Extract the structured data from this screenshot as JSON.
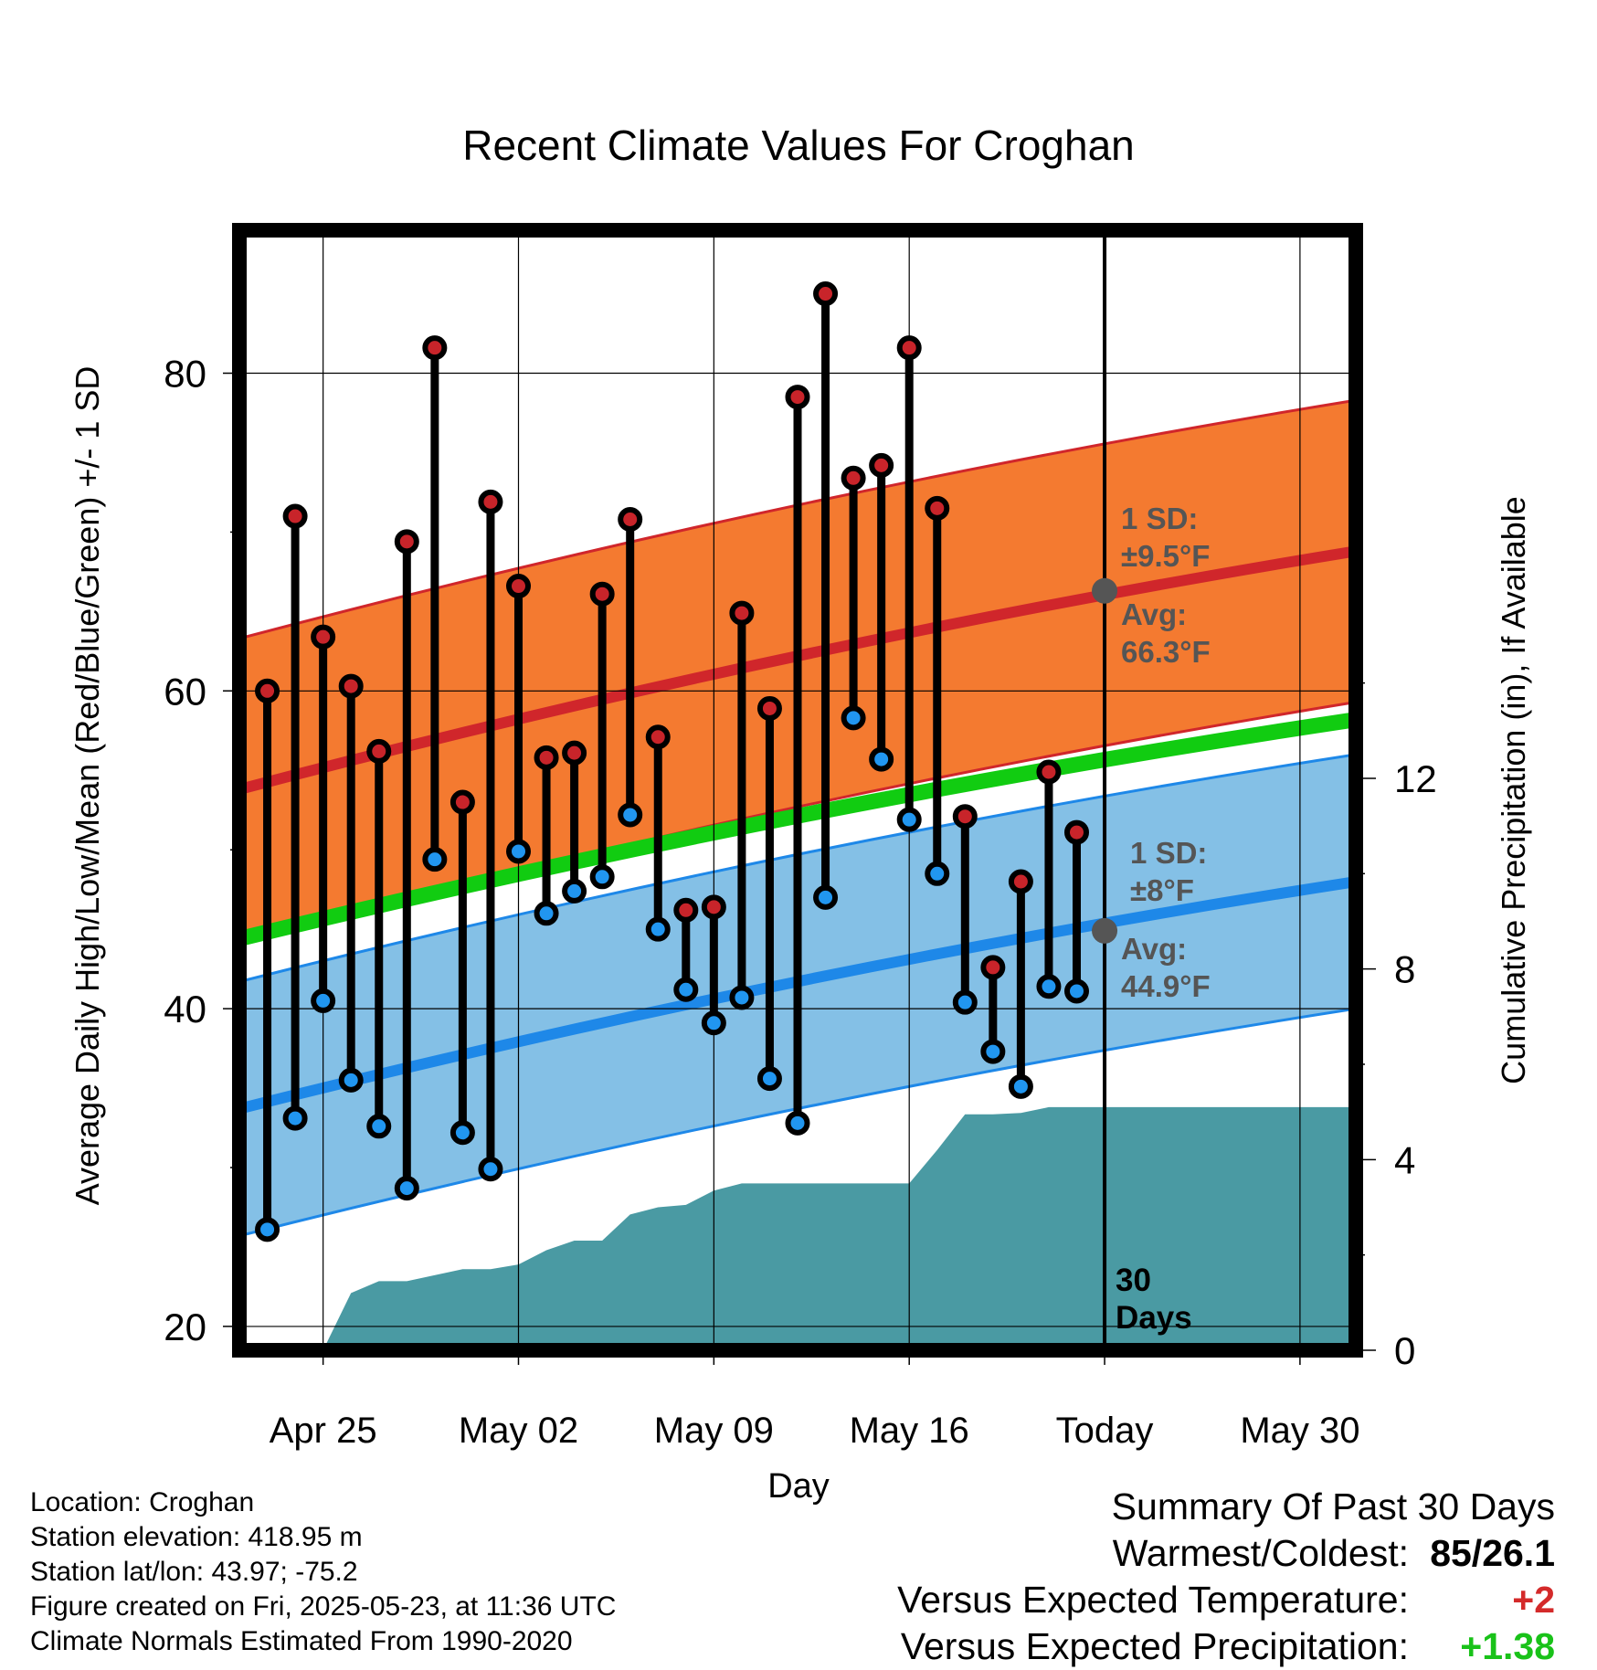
{
  "chart_data": {
    "type": "line",
    "title": "Recent Climate Values For Croghan",
    "xlabel": "Day",
    "ylabel": "Average Daily High/Low/Mean (Red/Blue/Green) +/- 1 SD",
    "y2label": "Cumulative Precipitation (in), If Available",
    "x_range": [
      "Apr 22",
      "Jun 01"
    ],
    "ylim": [
      18.5,
      89
    ],
    "y2lim": [
      0,
      23.5
    ],
    "x_ticks": [
      "Apr 25",
      "May 02",
      "May 09",
      "May 16",
      "Today",
      "May 30"
    ],
    "y_ticks": [
      20,
      40,
      60,
      80
    ],
    "y2_ticks": [
      0,
      4,
      8,
      12
    ],
    "grid": true,
    "today": "May 23",
    "today_label": "30 Days",
    "dates": [
      "Apr 23",
      "Apr 24",
      "Apr 25",
      "Apr 26",
      "Apr 27",
      "Apr 28",
      "Apr 29",
      "Apr 30",
      "May 01",
      "May 02",
      "May 03",
      "May 04",
      "May 05",
      "May 06",
      "May 07",
      "May 08",
      "May 09",
      "May 10",
      "May 11",
      "May 12",
      "May 13",
      "May 14",
      "May 15",
      "May 16",
      "May 17",
      "May 18",
      "May 19",
      "May 20",
      "May 21",
      "May 22"
    ],
    "highs": [
      60,
      71,
      63.4,
      60.3,
      56.2,
      69.4,
      81.6,
      53,
      71.9,
      66.6,
      55.8,
      56.1,
      66.1,
      70.8,
      57.1,
      46.2,
      46.4,
      64.9,
      58.9,
      78.5,
      85,
      73.4,
      74.2,
      81.6,
      71.5,
      52.1,
      42.6,
      48,
      54.9,
      51.1
    ],
    "lows": [
      26.1,
      33.1,
      40.5,
      35.5,
      32.6,
      28.7,
      49.4,
      32.2,
      29.9,
      49.9,
      46,
      47.4,
      48.3,
      52.2,
      45,
      41.2,
      39.1,
      40.7,
      35.6,
      32.8,
      47,
      58.3,
      55.7,
      51.9,
      48.5,
      40.4,
      37.3,
      35.1,
      41.4,
      41.1
    ],
    "normals": {
      "x": [
        "Apr 22",
        "Jun 01"
      ],
      "high_avg": [
        53.8,
        68.8
      ],
      "low_avg": [
        33.7,
        48
      ],
      "mean_avg": [
        44.4,
        58.2
      ],
      "high_sd": 9.5,
      "low_sd": 8
    },
    "precip_cumulative": {
      "x": [
        "Apr 25",
        "Apr 26",
        "Apr 27",
        "Apr 28",
        "Apr 30",
        "May 01",
        "May 02",
        "May 03",
        "May 04",
        "May 05",
        "May 06",
        "May 07",
        "May 08",
        "May 09",
        "May 10",
        "May 15",
        "May 16",
        "May 17",
        "May 18",
        "May 19",
        "May 20",
        "May 21",
        "Jun 01"
      ],
      "values": [
        0,
        1.2,
        1.45,
        1.45,
        1.7,
        1.7,
        1.8,
        2.1,
        2.3,
        2.3,
        2.85,
        3,
        3.05,
        3.35,
        3.5,
        3.5,
        3.5,
        4.2,
        4.95,
        4.95,
        4.98,
        5.1,
        5.1
      ]
    },
    "annotations": {
      "high_sd_label": "1 SD:",
      "high_sd_value": "±9.5°F",
      "high_avg_label": "Avg:",
      "high_avg_value": "66.3°F",
      "low_sd_label": "1 SD:",
      "low_sd_value": "±8°F",
      "low_avg_label": "Avg:",
      "low_avg_value": "44.9°F",
      "today_high_avg": 66.3,
      "today_low_avg": 44.9
    },
    "colors": {
      "high_band": "#f47a30",
      "high_line": "#d0262b",
      "low_band": "#84c0e6",
      "low_line": "#1e88e8",
      "mean_line": "#11cc11",
      "precip": "#4a9aa3",
      "high_point": "#c8242a",
      "low_point": "#2196f0"
    }
  },
  "info": {
    "location": "Location: Croghan",
    "elevation": "Station elevation: 418.95 m",
    "latlon": "Station lat/lon: 43.97; -75.2",
    "created": "Figure created on Fri, 2025-05-23, at 11:36 UTC",
    "normals": "Climate Normals Estimated From 1990-2020"
  },
  "summary": {
    "title": "Summary Of Past 30 Days",
    "warmest_label": "Warmest/Coldest:",
    "warmest_value": "85/26.1",
    "temp_label": "Versus Expected Temperature:",
    "temp_value": "+2",
    "temp_color": "#d42a2a",
    "precip_label": "Versus Expected Precipitation:",
    "precip_value": "+1.38",
    "precip_color": "#19c219"
  }
}
